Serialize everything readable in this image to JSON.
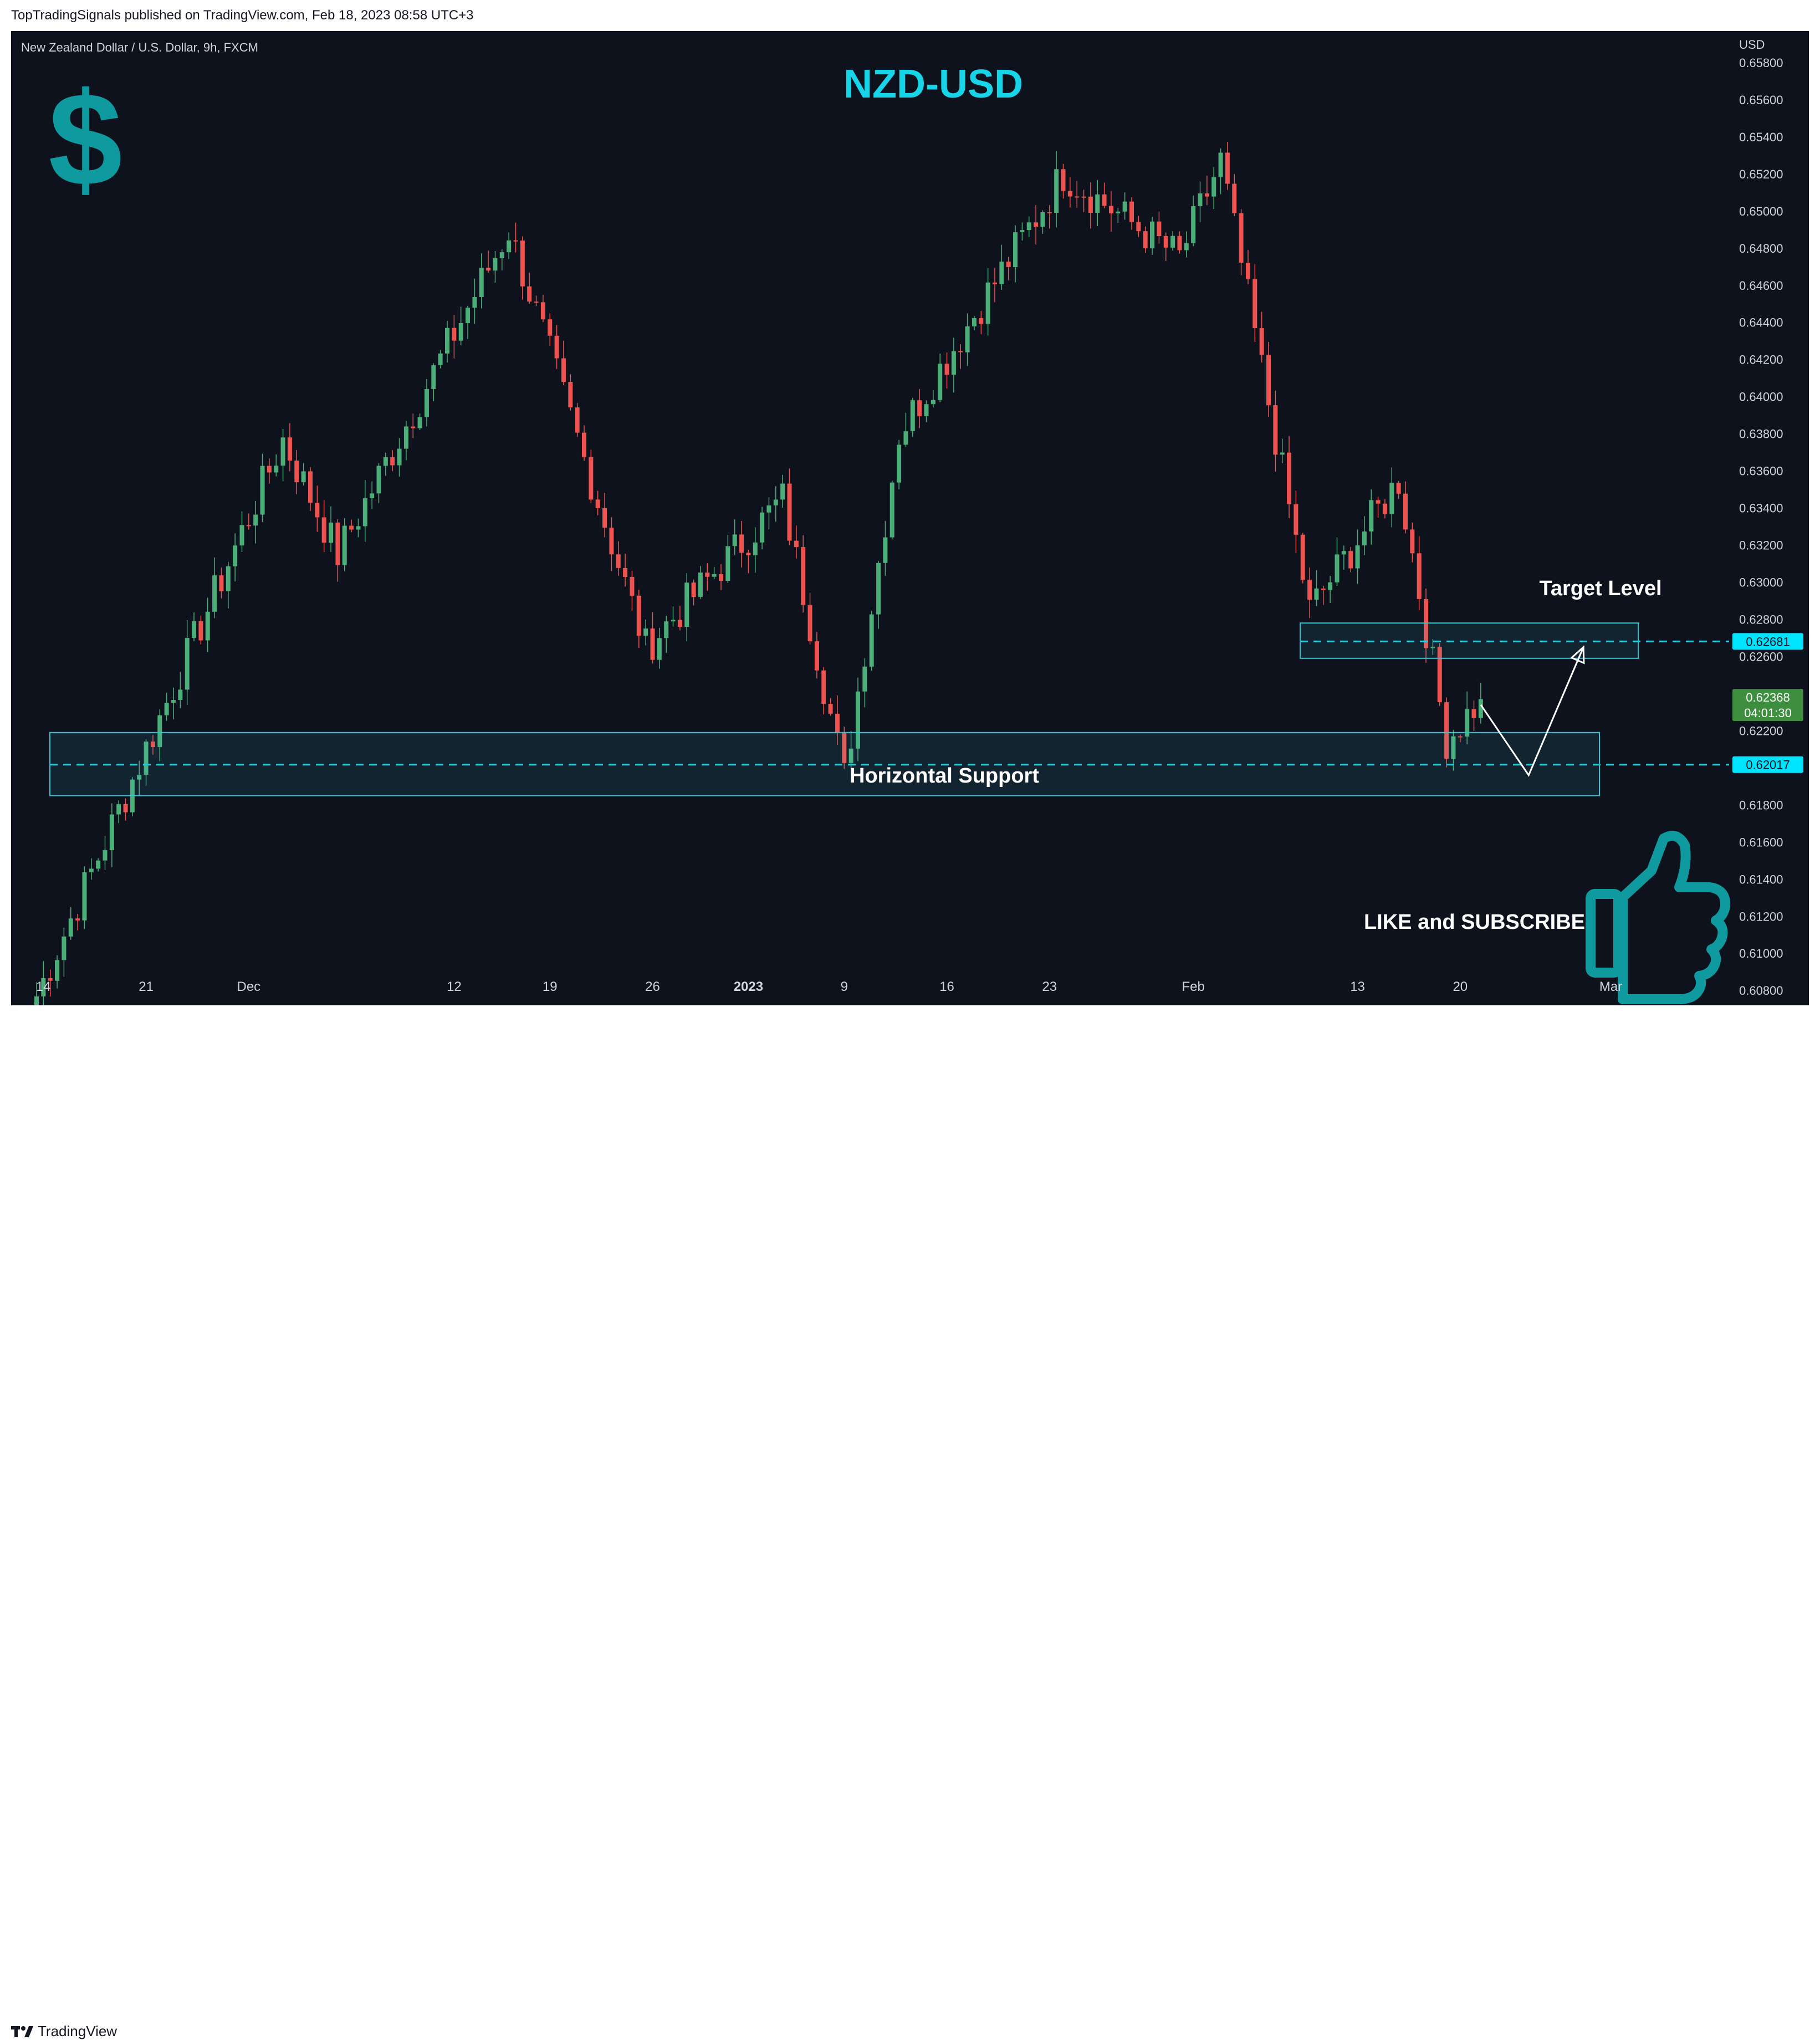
{
  "header": {
    "published_line": "TopTradingSignals published on TradingView.com, Feb 18, 2023 08:58 UTC+3"
  },
  "footer": {
    "brand": "TradingView"
  },
  "chart": {
    "symbol_line": "New Zealand Dollar / U.S. Dollar, 9h, FXCM",
    "title": "NZD-USD",
    "currency_label": "USD",
    "dollar_glyph": "$",
    "support_label": "Horizontal Support",
    "target_label": "Target Level",
    "cta_label": "LIKE and SUBSCRIBE",
    "icons": [
      "dollar-icon",
      "thumbs-up-icon",
      "tradingview-logo-icon"
    ],
    "colors": {
      "background": "#0e121c",
      "up": "#26a69a",
      "up_body": "#4caf7a",
      "down": "#ef5350",
      "zone": "#2fc6d6",
      "title": "#18d4e8",
      "accent_icon": "#0f9aa0",
      "last_price_bg": "#3d8f3f"
    }
  },
  "chart_data": {
    "type": "candlestick",
    "title": "NZD-USD",
    "ylabel": "USD",
    "ylim": [
      0.6072,
      0.6597
    ],
    "y_ticks": [
      0.658,
      0.656,
      0.654,
      0.652,
      0.65,
      0.648,
      0.646,
      0.644,
      0.642,
      0.64,
      0.638,
      0.636,
      0.634,
      0.632,
      0.63,
      0.628,
      0.626,
      0.624,
      0.622,
      0.62,
      0.618,
      0.616,
      0.614,
      0.612,
      0.61,
      0.608
    ],
    "y_tick_labels": [
      "0.65800",
      "0.65600",
      "0.65400",
      "0.65200",
      "0.65000",
      "0.64800",
      "0.64600",
      "0.64400",
      "0.64200",
      "0.64000",
      "0.63800",
      "0.63600",
      "0.63400",
      "0.63200",
      "0.63000",
      "0.62800",
      "0.62600",
      "0.62400",
      "0.62200",
      "0.62000",
      "0.61800",
      "0.61600",
      "0.61400",
      "0.61200",
      "0.61000",
      "0.60800"
    ],
    "x_tick_labels": [
      {
        "label": "14",
        "bar": 1
      },
      {
        "label": "21",
        "bar": 16
      },
      {
        "label": "Dec",
        "bar": 31
      },
      {
        "label": "12",
        "bar": 61
      },
      {
        "label": "19",
        "bar": 75
      },
      {
        "label": "26",
        "bar": 90
      },
      {
        "label": "2023",
        "bar": 104,
        "bold": true
      },
      {
        "label": "9",
        "bar": 118
      },
      {
        "label": "16",
        "bar": 133
      },
      {
        "label": "23",
        "bar": 148
      },
      {
        "label": "Feb",
        "bar": 169
      },
      {
        "label": "13",
        "bar": 193
      },
      {
        "label": "20",
        "bar": 208
      },
      {
        "label": "Mar",
        "bar": 230
      }
    ],
    "bar_count": 235,
    "key_points": [
      {
        "bar": 0,
        "price": 0.6077,
        "note": "series start low"
      },
      {
        "bar": 36,
        "price": 0.6377,
        "note": "early December high"
      },
      {
        "bar": 44,
        "price": 0.6315,
        "note": "pullback"
      },
      {
        "bar": 69,
        "price": 0.649,
        "note": "mid-December high"
      },
      {
        "bar": 89,
        "price": 0.6265,
        "note": "late December low"
      },
      {
        "bar": 109,
        "price": 0.6345,
        "note": "early January bounce"
      },
      {
        "bar": 118,
        "price": 0.6195,
        "note": "January low near support"
      },
      {
        "bar": 126,
        "price": 0.638,
        "note": "rally"
      },
      {
        "bar": 150,
        "price": 0.652,
        "note": "late January high"
      },
      {
        "bar": 167,
        "price": 0.6475,
        "note": "pullback"
      },
      {
        "bar": 173,
        "price": 0.6527,
        "note": "February high"
      },
      {
        "bar": 186,
        "price": 0.6285,
        "note": "post-high drop"
      },
      {
        "bar": 199,
        "price": 0.6355,
        "note": "bounce"
      },
      {
        "bar": 206,
        "price": 0.6215,
        "note": "recent low"
      },
      {
        "bar": 211,
        "price": 0.6237,
        "note": "last price"
      }
    ],
    "last_price": {
      "value": "0.62368",
      "countdown": "04:01:30"
    },
    "horizontal_support": {
      "level": 0.62017,
      "zone": [
        0.6185,
        0.6219
      ],
      "label": "0.62017"
    },
    "target_level": {
      "level": 0.62681,
      "zone": [
        0.6259,
        0.6278
      ],
      "label": "0.62681"
    },
    "projection_path": [
      {
        "bar": 211,
        "price": 0.6234
      },
      {
        "bar": 218,
        "price": 0.6196
      },
      {
        "bar": 226,
        "price": 0.6265
      }
    ]
  }
}
